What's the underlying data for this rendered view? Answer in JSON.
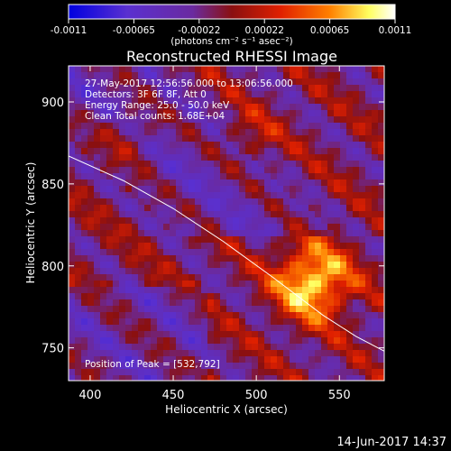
{
  "chart_data": {
    "type": "heatmap",
    "title": "Reconstructed RHESSI Image",
    "xlabel": "Heliocentric X (arcsec)",
    "ylabel": "Heliocentric Y (arcsec)",
    "xlim": [
      387,
      577
    ],
    "ylim": [
      730,
      922
    ],
    "x_ticks": [
      "400",
      "450",
      "500",
      "550"
    ],
    "y_ticks": [
      "750",
      "800",
      "850",
      "900"
    ],
    "colorbar": {
      "ticks": [
        "-0.0011",
        "-0.00065",
        "-0.00022",
        "0.00022",
        "0.00065",
        "0.0011"
      ],
      "range": [
        -0.0011,
        0.0011
      ],
      "unit_label": "(photons cm⁻² s⁻¹ asec⁻²)",
      "colors": [
        "#0000e0",
        "#6a2ad0",
        "#8a1a1a",
        "#d02000",
        "#ff8000",
        "#ffff60",
        "#ffffff"
      ]
    },
    "annotations": [
      "27-May-2017 12:56:56.000 to 13:06:56.000",
      "Detectors: 3F 6F 8F, Att 0",
      "Energy Range: 25.0 - 50.0 keV",
      "Clean    Total counts: 1.68E+04"
    ],
    "peak_label": "Position of Peak = [532,792]",
    "peak": [
      532,
      792
    ],
    "limb_curve": [
      [
        387,
        867
      ],
      [
        420,
        852
      ],
      [
        450,
        835
      ],
      [
        480,
        815
      ],
      [
        510,
        793
      ],
      [
        540,
        770
      ],
      [
        560,
        757
      ],
      [
        577,
        748
      ]
    ],
    "grid": false
  },
  "footer": {
    "timestamp": "14-Jun-2017 14:37"
  }
}
